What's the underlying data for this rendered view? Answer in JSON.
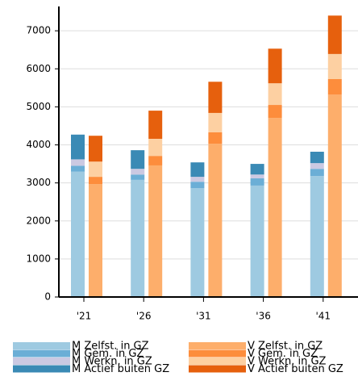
{
  "chart_data": {
    "type": "bar",
    "categories": [
      "'21",
      "'26",
      "'31",
      "'36",
      "'41"
    ],
    "series": [
      {
        "name": "M Zelfst. in GZ",
        "color": "#9ecae1",
        "values": [
          3300,
          3080,
          2860,
          2930,
          3180
        ]
      },
      {
        "name": "M Gem. in GZ",
        "color": "#6baed6",
        "values": [
          150,
          140,
          170,
          190,
          190
        ]
      },
      {
        "name": "M Werkn. in GZ",
        "color": "#cbc9e2",
        "values": [
          170,
          150,
          130,
          100,
          150
        ]
      },
      {
        "name": "M Actief buiten GZ",
        "color": "#3a8ab5",
        "values": [
          650,
          490,
          380,
          280,
          300
        ]
      },
      {
        "name": "V Zelfst. in GZ",
        "color": "#fdae6b",
        "values": [
          2970,
          3460,
          4030,
          4710,
          5320
        ]
      },
      {
        "name": "V Gem. in GZ",
        "color": "#fd8d3c",
        "values": [
          190,
          250,
          300,
          340,
          410
        ]
      },
      {
        "name": "V Werkn. in GZ",
        "color": "#fdd0a2",
        "values": [
          400,
          450,
          510,
          570,
          660
        ]
      },
      {
        "name": "V Actief buiten GZ",
        "color": "#e6600d",
        "values": [
          680,
          740,
          820,
          910,
          1010
        ]
      }
    ],
    "ylim": [
      0,
      7640
    ],
    "yticks": [
      0,
      1000,
      2000,
      3000,
      4000,
      5000,
      6000,
      7000
    ],
    "grid": true
  }
}
